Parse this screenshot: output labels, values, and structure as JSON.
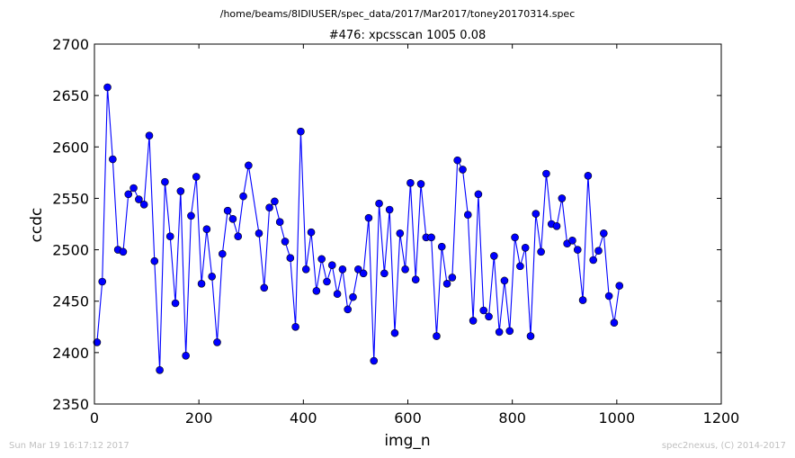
{
  "chart_data": {
    "type": "line",
    "suptitle": "/home/beams/8IDIUSER/spec_data/2017/Mar2017/toney20170314.spec",
    "title": "#476: xpcsscan 1005 0.08",
    "xlabel": "img_n",
    "ylabel": "ccdc",
    "xlim": [
      0,
      1200
    ],
    "ylim": [
      2350,
      2700
    ],
    "xticks": [
      "0",
      "200",
      "400",
      "600",
      "800",
      "1000",
      "1200"
    ],
    "yticks": [
      "2350",
      "2400",
      "2450",
      "2500",
      "2550",
      "2600",
      "2650",
      "2700"
    ],
    "grid": false,
    "color": "#0000ff",
    "marker": "circle",
    "series": [
      {
        "x": [
          5,
          15,
          25,
          35,
          45,
          55,
          65,
          75,
          85,
          95,
          105,
          115,
          125,
          135,
          145,
          155,
          165,
          175,
          185,
          195,
          205,
          215,
          225,
          235,
          245,
          255,
          265,
          275,
          285,
          295,
          315,
          325,
          335,
          345,
          355,
          365,
          375,
          385,
          395,
          405,
          415,
          425,
          435,
          445,
          455,
          465,
          475,
          485,
          495,
          505,
          515,
          525,
          535,
          545,
          555,
          565,
          575,
          585,
          595,
          605,
          615,
          625,
          635,
          645,
          655,
          665,
          675,
          685,
          695,
          705,
          715,
          725,
          735,
          745,
          755,
          765,
          775,
          785,
          795,
          805,
          815,
          825,
          835,
          845,
          855,
          865,
          875,
          885,
          895,
          905,
          915,
          925,
          935,
          945,
          955,
          965,
          975,
          985,
          995,
          1005
        ],
        "y": [
          2410,
          2469,
          2658,
          2588,
          2500,
          2498,
          2554,
          2560,
          2549,
          2544,
          2611,
          2489,
          2383,
          2566,
          2513,
          2448,
          2557,
          2397,
          2533,
          2571,
          2467,
          2520,
          2474,
          2410,
          2496,
          2538,
          2530,
          2513,
          2552,
          2582,
          2516,
          2463,
          2541,
          2547,
          2527,
          2508,
          2492,
          2425,
          2615,
          2481,
          2517,
          2460,
          2491,
          2469,
          2485,
          2457,
          2481,
          2442,
          2454,
          2481,
          2477,
          2531,
          2392,
          2545,
          2477,
          2539,
          2419,
          2516,
          2481,
          2565,
          2471,
          2564,
          2512,
          2512,
          2416,
          2503,
          2467,
          2473,
          2587,
          2578,
          2534,
          2431,
          2554,
          2441,
          2435,
          2494,
          2420,
          2470,
          2421,
          2512,
          2484,
          2502,
          2416,
          2535,
          2498,
          2574,
          2525,
          2523,
          2550,
          2506,
          2509,
          2500,
          2451,
          2572,
          2490,
          2499,
          2516,
          2455,
          2429,
          2465
        ]
      }
    ]
  },
  "footer": {
    "timestamp": "Sun Mar 19 16:17:12 2017",
    "credit": "spec2nexus, (C) 2014-2017"
  }
}
